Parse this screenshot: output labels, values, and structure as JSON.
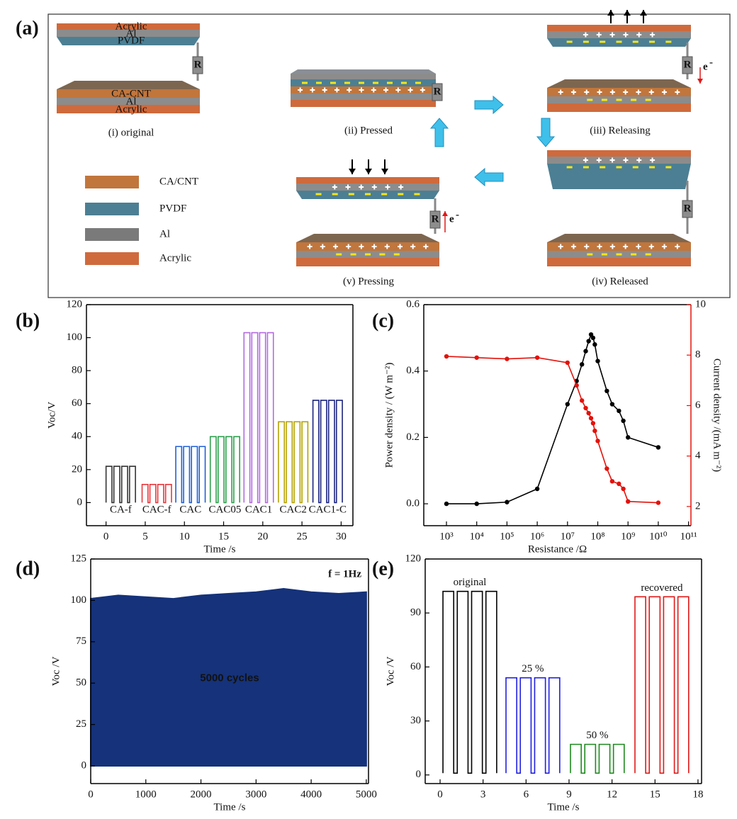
{
  "diagram": {
    "label": "(a)",
    "layers_top": [
      "Acrylic",
      "Al",
      "PVDF"
    ],
    "layers_bottom": [
      "CA-CNT",
      "Al",
      "Acrylic"
    ],
    "legend": [
      "CA/CNT",
      "PVDF",
      "Al",
      "Acrylic"
    ],
    "resistor": "R",
    "electron": "e",
    "electron_charge": "-",
    "states": [
      "(i) original",
      "(ii) Pressed",
      "(iii) Releasing",
      "(iv) Released",
      "(v) Pressing"
    ]
  },
  "chart_data": [
    {
      "type": "line",
      "label": "(b)",
      "xlabel": "Time /s",
      "ylabel": "Voc/V",
      "xlim": [
        -2.5,
        31.5
      ],
      "ylim": [
        -14,
        120
      ],
      "xticks": [
        0,
        5,
        10,
        15,
        20,
        25,
        30
      ],
      "yticks": [
        0,
        20,
        40,
        60,
        80,
        100,
        120
      ],
      "series_labels": "below",
      "series": [
        {
          "name": "CA-f",
          "color": "#333333",
          "x": [
            0,
            0,
            0.75,
            0.75,
            1,
            1,
            1.75,
            1.75,
            2,
            2,
            2.75,
            2.75,
            3,
            3,
            3.75,
            3.75
          ],
          "values": [
            0,
            22,
            22,
            0,
            0,
            22,
            22,
            0,
            0,
            22,
            22,
            0,
            0,
            22,
            22,
            0
          ]
        },
        {
          "name": "CAC-f",
          "color": "#e8383d",
          "x": [
            4.6,
            4.6,
            5.35,
            5.35,
            5.6,
            5.6,
            6.35,
            6.35,
            6.6,
            6.6,
            7.35,
            7.35,
            7.6,
            7.6,
            8.35,
            8.35
          ],
          "values": [
            0,
            11,
            11,
            0,
            0,
            11,
            11,
            0,
            0,
            11,
            11,
            0,
            0,
            11,
            11,
            0
          ]
        },
        {
          "name": "CAC",
          "color": "#1f5fd6",
          "x": [
            8.9,
            8.9,
            9.65,
            9.65,
            9.9,
            9.9,
            10.65,
            10.65,
            10.9,
            10.9,
            11.65,
            11.65,
            11.9,
            11.9,
            12.65,
            12.65
          ],
          "values": [
            0,
            34,
            34,
            0,
            0,
            34,
            34,
            0,
            0,
            34,
            34,
            0,
            0,
            34,
            34,
            0
          ]
        },
        {
          "name": "CAC05",
          "color": "#2ca04c",
          "x": [
            13.3,
            13.3,
            14.05,
            14.05,
            14.3,
            14.3,
            15.05,
            15.05,
            15.3,
            15.3,
            16.05,
            16.05,
            16.3,
            16.3,
            17.05,
            17.05
          ],
          "values": [
            0,
            40,
            40,
            0,
            0,
            40,
            40,
            0,
            0,
            40,
            40,
            0,
            0,
            40,
            40,
            0
          ]
        },
        {
          "name": "CAC1",
          "color": "#b36ae2",
          "x": [
            17.6,
            17.6,
            18.35,
            18.35,
            18.6,
            18.6,
            19.35,
            19.35,
            19.6,
            19.6,
            20.35,
            20.35,
            20.6,
            20.6,
            21.35,
            21.35
          ],
          "values": [
            0,
            103,
            103,
            0,
            0,
            103,
            103,
            0,
            0,
            103,
            103,
            0,
            0,
            103,
            103,
            0
          ]
        },
        {
          "name": "CAC2",
          "color": "#b5a200",
          "x": [
            22,
            22,
            22.75,
            22.75,
            23,
            23,
            23.75,
            23.75,
            24,
            24,
            24.75,
            24.75,
            25,
            25,
            25.75,
            25.75
          ],
          "values": [
            0,
            49,
            49,
            0,
            0,
            49,
            49,
            0,
            0,
            49,
            49,
            0,
            0,
            49,
            49,
            0
          ]
        },
        {
          "name": "CAC1-C",
          "color": "#1a237e",
          "x": [
            26.4,
            26.4,
            27.15,
            27.15,
            27.4,
            27.4,
            28.15,
            28.15,
            28.4,
            28.4,
            29.15,
            29.15,
            29.4,
            29.4,
            30.15,
            30.15
          ],
          "values": [
            0,
            62,
            62,
            0,
            0,
            62,
            62,
            0,
            0,
            62,
            62,
            0,
            0,
            62,
            62,
            0
          ]
        }
      ]
    },
    {
      "type": "scatter",
      "label": "(c)",
      "xlabel": "Resistance /Ω",
      "ylabel": "Power density / (W m⁻²)",
      "y2label": "Current density /(mA m⁻²)",
      "xscale": "log",
      "xlim": [
        178,
        120000000000
      ],
      "ylim": [
        -0.066,
        0.6
      ],
      "y2lim": [
        1.24,
        10
      ],
      "xticks": [
        {
          "value": 1000,
          "label": "10³"
        },
        {
          "value": 10000,
          "label": "10⁴"
        },
        {
          "value": 100000,
          "label": "10⁵"
        },
        {
          "value": 1000000,
          "label": "10⁶"
        },
        {
          "value": 10000000,
          "label": "10⁷"
        },
        {
          "value": 100000000,
          "label": "10⁸"
        },
        {
          "value": 1000000000,
          "label": "10⁹"
        },
        {
          "value": 10000000000,
          "label": "10¹⁰"
        },
        {
          "value": 100000000000,
          "label": "10¹¹"
        }
      ],
      "yticks": [
        {
          "value": 0,
          "label": "0.0"
        },
        0.2,
        0.4,
        0.6
      ],
      "y2ticks": [
        2,
        4,
        6,
        8,
        10
      ],
      "x": [
        1000,
        10000,
        100000,
        1000000,
        10000000,
        20000000,
        30000000,
        40000000,
        50000000,
        60000000,
        70000000,
        80000000,
        100000000,
        200000000,
        300000000,
        500000000,
        700000000,
        1000000000,
        10000000000
      ],
      "series": [
        {
          "color": "#000000",
          "values": [
            0,
            0,
            0.005,
            0.045,
            0.3,
            0.37,
            0.42,
            0.46,
            0.49,
            0.51,
            0.5,
            0.48,
            0.43,
            0.34,
            0.3,
            0.28,
            0.25,
            0.2,
            0.17
          ]
        },
        {
          "color": "#e3120b",
          "axis": "y2",
          "values": [
            7.95,
            7.9,
            7.85,
            7.9,
            7.7,
            6.8,
            6.2,
            5.9,
            5.7,
            5.5,
            5.3,
            5.0,
            4.6,
            3.5,
            3.0,
            2.9,
            2.7,
            2.2,
            2.15
          ]
        }
      ]
    },
    {
      "type": "area",
      "label": "(d)",
      "xlabel": "Time /s",
      "ylabel": "Voc /V",
      "xlim": [
        0,
        5040
      ],
      "ylim": [
        -10.7,
        125
      ],
      "xticks": [
        0,
        1000,
        2000,
        3000,
        4000,
        5000
      ],
      "yticks": [
        0,
        25,
        50,
        75,
        100,
        125
      ],
      "color": "#15327a",
      "annotations": [
        "f = 1Hz",
        "5000 cycles"
      ],
      "x": [
        0,
        500,
        1000,
        1500,
        2000,
        2500,
        3000,
        3500,
        4000,
        4500,
        5000
      ],
      "values": [
        101,
        103,
        102,
        101,
        103,
        104,
        105,
        107,
        105,
        104,
        105
      ]
    },
    {
      "type": "line",
      "label": "(e)",
      "xlabel": "Time /s",
      "ylabel": "Voc /V",
      "xlim": [
        -1.04,
        18.25
      ],
      "ylim": [
        -4.8,
        120
      ],
      "xticks": [
        0,
        3,
        6,
        9,
        12,
        15,
        18
      ],
      "yticks": [
        0,
        30,
        60,
        90,
        120
      ],
      "series_labels": "above",
      "series": [
        {
          "name": "original",
          "color": "#000000",
          "x": [
            0.2,
            0.2,
            0.95,
            0.95,
            1.2,
            1.2,
            1.95,
            1.95,
            2.2,
            2.2,
            2.95,
            2.95,
            3.2,
            3.2,
            3.95,
            3.95
          ],
          "values": [
            1,
            102,
            102,
            1,
            1,
            102,
            102,
            1,
            1,
            102,
            102,
            1,
            1,
            102,
            102,
            1
          ]
        },
        {
          "name": "25 %",
          "color": "#1f1fe0",
          "x": [
            4.6,
            4.6,
            5.35,
            5.35,
            5.6,
            5.6,
            6.35,
            6.35,
            6.6,
            6.6,
            7.35,
            7.35,
            7.6,
            7.6,
            8.35,
            8.35
          ],
          "values": [
            1,
            54,
            54,
            1,
            1,
            54,
            54,
            1,
            1,
            54,
            54,
            1,
            1,
            54,
            54,
            1
          ]
        },
        {
          "name": "50 %",
          "color": "#1e8a1e",
          "x": [
            9.1,
            9.1,
            9.85,
            9.85,
            10.1,
            10.1,
            10.85,
            10.85,
            11.1,
            11.1,
            11.85,
            11.85,
            12.1,
            12.1,
            12.85,
            12.85
          ],
          "values": [
            1,
            17,
            17,
            1,
            1,
            17,
            17,
            1,
            1,
            17,
            17,
            1,
            1,
            17,
            17,
            1
          ]
        },
        {
          "name": "recovered",
          "color": "#e01818",
          "x": [
            13.6,
            13.6,
            14.35,
            14.35,
            14.6,
            14.6,
            15.35,
            15.35,
            15.6,
            15.6,
            16.35,
            16.35,
            16.6,
            16.6,
            17.35,
            17.35
          ],
          "values": [
            1,
            99,
            99,
            1,
            1,
            99,
            99,
            1,
            1,
            99,
            99,
            1,
            1,
            99,
            99,
            1
          ]
        }
      ]
    }
  ]
}
